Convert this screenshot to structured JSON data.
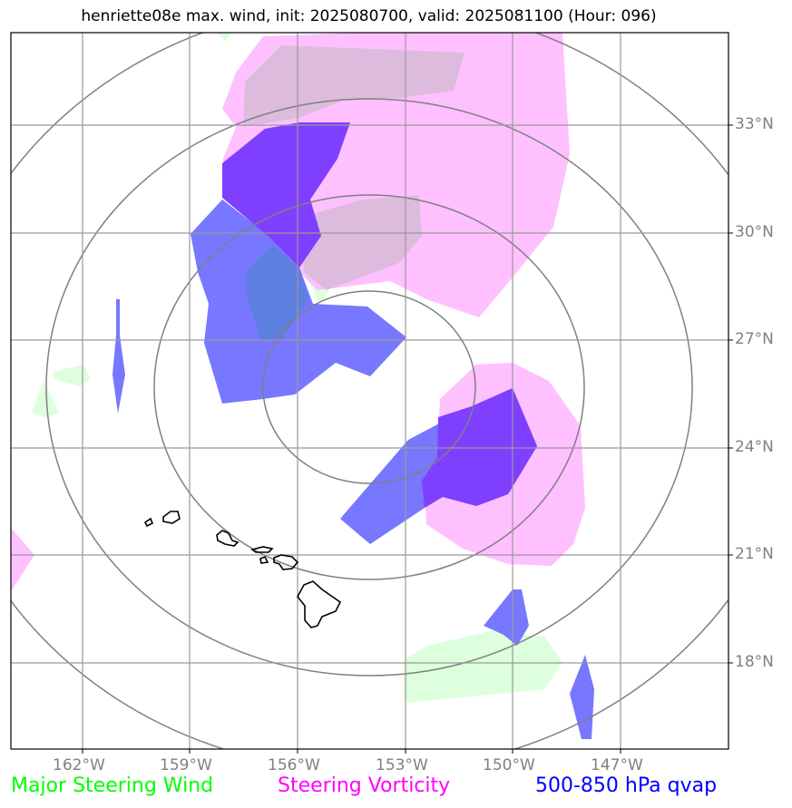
{
  "title": "henriette08e max. wind, init: 2025080700, valid: 2025081100 (Hour: 096)",
  "lat_labels": [
    "33°N",
    "30°N",
    "27°N",
    "24°N",
    "21°N",
    "18°N"
  ],
  "lon_labels": [
    "162°W",
    "159°W",
    "156°W",
    "153°W",
    "150°W",
    "147°W"
  ],
  "legend": {
    "wind": "Major Steering Wind",
    "vorticity": "Steering Vorticity",
    "qvap": "500-850 hPa qvap"
  },
  "colors": {
    "wind": "#00ff00",
    "vorticity": "#ff00ff",
    "qvap": "#0000ff",
    "grid": "#808080",
    "coast": "#000000"
  }
}
